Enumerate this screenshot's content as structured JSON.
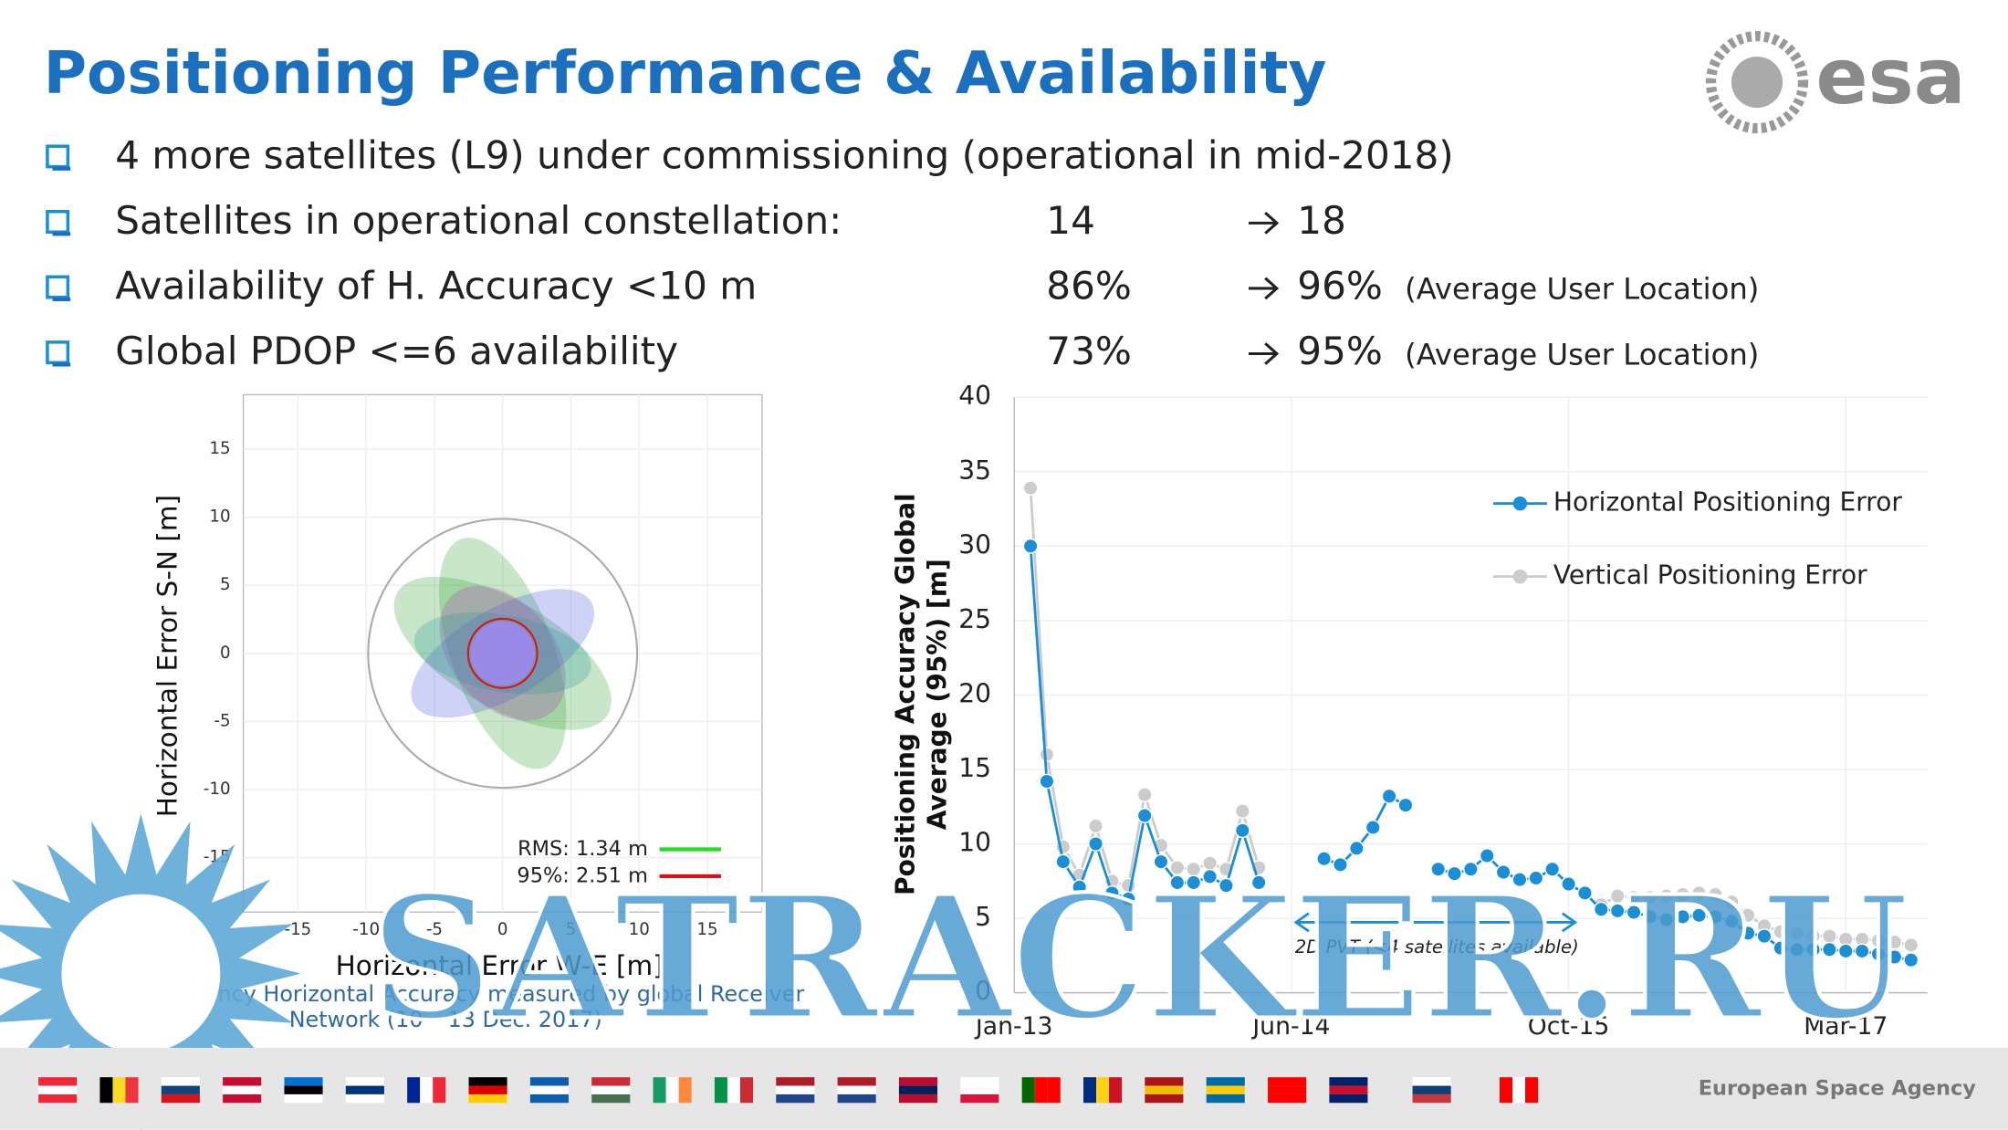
{
  "header": {
    "title": "Positioning Performance & Availability",
    "logo": "esa"
  },
  "bullets": [
    {
      "text": "4 more satellites (L9) under commissioning  (operational in mid-2018)"
    },
    {
      "text": "Satellites in operational constellation:",
      "from": "14",
      "to": "18"
    },
    {
      "text": "Availability of H. Accuracy <10 m",
      "from": "86%",
      "to": "96%",
      "note": "(Average User Location)"
    },
    {
      "text": "Global PDOP <=6 availability",
      "from": "73%",
      "to": "95%",
      "note": "(Average User Location)"
    }
  ],
  "chart_data": [
    {
      "type": "scatter",
      "xlabel": "Horizontal Error W-E [m]",
      "ylabel": "Horizontal Error S-N [m]",
      "xlim": [
        -19,
        19
      ],
      "ylim": [
        -19,
        19
      ],
      "xticks": [
        -15,
        -10,
        -5,
        0,
        5,
        10,
        15
      ],
      "yticks": [
        -15,
        -10,
        -5,
        0,
        5,
        10,
        15
      ],
      "grid": true,
      "legend": [
        {
          "label": "RMS: 1.34 m",
          "color": "#22dd22"
        },
        {
          "label": "95%: 2.51 m",
          "color": "#dd1111"
        }
      ],
      "caption": [
        "Dual Frequency Horizontal Accuracy measured by global Receiver",
        "Network (10 – 13 Dec. 2017)"
      ]
    },
    {
      "type": "line",
      "ylabel": [
        "Positioning  Accuracy  Global",
        "Average (95%)  [m]"
      ],
      "categories": [
        "Jan-13",
        null,
        null,
        null,
        null,
        null,
        null,
        null,
        null,
        null,
        null,
        null,
        null,
        null,
        null,
        null,
        null,
        "Jun-14",
        null,
        null,
        null,
        null,
        null,
        null,
        null,
        null,
        null,
        null,
        null,
        null,
        null,
        null,
        null,
        null,
        "Oct-15",
        null,
        null,
        null,
        null,
        null,
        null,
        null,
        null,
        null,
        null,
        null,
        null,
        null,
        null,
        null,
        null,
        "Mar-17",
        null,
        null,
        null,
        null,
        null
      ],
      "ylim": [
        0,
        40
      ],
      "yticks": [
        0,
        5,
        10,
        15,
        20,
        25,
        30,
        35,
        40
      ],
      "grid": true,
      "legend": "upper right",
      "annotation": "2D PVT (<4 satellites available)",
      "series": [
        {
          "name": "Horizontal Positioning Error",
          "color": "#1a8fd6",
          "values": [
            null,
            30,
            14.2,
            8.8,
            7.1,
            10.0,
            6.7,
            6.3,
            11.9,
            8.8,
            7.4,
            7.4,
            7.8,
            7.2,
            10.9,
            7.4,
            null,
            null,
            null,
            9.0,
            8.6,
            9.7,
            11.1,
            13.2,
            12.6,
            null,
            8.3,
            8.0,
            8.3,
            9.2,
            8.1,
            7.6,
            7.7,
            8.3,
            7.3,
            6.7,
            5.6,
            5.5,
            5.4,
            5.1,
            4.9,
            5.1,
            5.2,
            5.1,
            4.8,
            4.0,
            3.8,
            3.0,
            2.9,
            2.9,
            2.9,
            2.8,
            2.8,
            2.6,
            2.4,
            2.2,
            null
          ]
        },
        {
          "name": "Vertical Positioning Error",
          "color": "#cccccc",
          "values": [
            null,
            33.9,
            16.0,
            9.8,
            7.9,
            11.2,
            7.5,
            7.2,
            13.3,
            9.9,
            8.4,
            8.3,
            8.7,
            8.3,
            12.2,
            8.4,
            null,
            null,
            null,
            null,
            null,
            null,
            null,
            null,
            null,
            null,
            null,
            null,
            null,
            null,
            null,
            null,
            null,
            null,
            null,
            null,
            5.9,
            6.5,
            6.4,
            6.4,
            6.5,
            6.6,
            6.7,
            6.6,
            6.1,
            5.2,
            4.5,
            4.1,
            4.0,
            3.8,
            3.8,
            3.6,
            3.6,
            3.5,
            3.4,
            3.2,
            null
          ]
        }
      ]
    }
  ],
  "watermark": "SATRACKER.RU",
  "footer": {
    "agency": "European Space Agency"
  }
}
